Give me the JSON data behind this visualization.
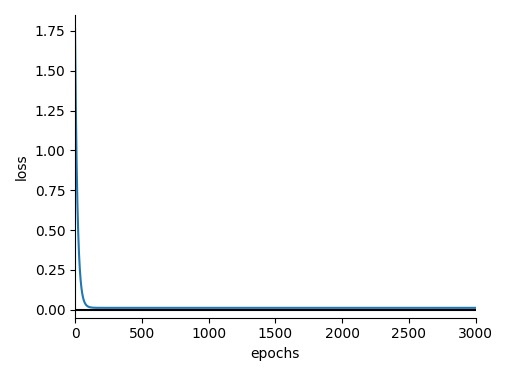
{
  "xlabel": "epochs",
  "ylabel": "loss",
  "xlim": [
    0,
    3000
  ],
  "ylim": [
    -0.05,
    1.85
  ],
  "xticks": [
    0,
    500,
    1000,
    1500,
    2000,
    2500,
    3000
  ],
  "yticks": [
    0.0,
    0.25,
    0.5,
    0.75,
    1.0,
    1.25,
    1.5,
    1.75
  ],
  "blue_line_color": "#1f77b4",
  "black_line_color": "#000000",
  "black_line_y": 0.0,
  "decay_start": 1.75,
  "decay_rate": 0.055,
  "residual": 0.012,
  "n_points": 3000,
  "figsize": [
    5.08,
    3.76
  ],
  "dpi": 100,
  "spine_top": false,
  "spine_right": false
}
